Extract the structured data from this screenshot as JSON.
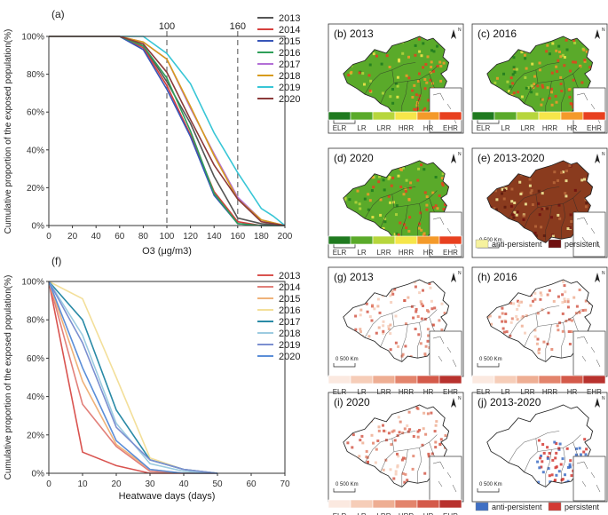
{
  "chart_data": [
    {
      "panel": "(a)",
      "type": "line",
      "xlabel": "O3 (μg/m3)",
      "ylabel": "Cumulative proportion of the exposed population(%)",
      "xlim": [
        0,
        200
      ],
      "ylim": [
        0,
        100
      ],
      "x_ticks": [
        0,
        20,
        40,
        60,
        80,
        100,
        120,
        140,
        160,
        180,
        200
      ],
      "y_ticks": [
        "0%",
        "20%",
        "40%",
        "60%",
        "80%",
        "100%"
      ],
      "threshold_lines": [
        100,
        160
      ],
      "threshold_labels": [
        "100",
        "160"
      ],
      "series": [
        {
          "name": "2013",
          "color": "#555555",
          "x": [
            0,
            60,
            80,
            100,
            120,
            140,
            160,
            180,
            200
          ],
          "y": [
            100,
            100,
            95,
            76,
            54,
            26,
            4,
            1,
            0
          ]
        },
        {
          "name": "2014",
          "color": "#d6403d",
          "x": [
            0,
            60,
            80,
            100,
            120,
            140,
            160,
            180,
            200
          ],
          "y": [
            100,
            100,
            94,
            74,
            48,
            18,
            2,
            0,
            0
          ]
        },
        {
          "name": "2015",
          "color": "#3755b8",
          "x": [
            0,
            60,
            80,
            100,
            120,
            140,
            160,
            180,
            200
          ],
          "y": [
            100,
            100,
            93,
            72,
            47,
            16,
            1,
            0,
            0
          ]
        },
        {
          "name": "2016",
          "color": "#2e9f59",
          "x": [
            0,
            60,
            80,
            100,
            120,
            140,
            160,
            180,
            200
          ],
          "y": [
            100,
            100,
            95,
            78,
            50,
            17,
            1,
            0,
            0
          ]
        },
        {
          "name": "2017",
          "color": "#b36fd6",
          "x": [
            0,
            60,
            80,
            100,
            120,
            140,
            160,
            180,
            200
          ],
          "y": [
            100,
            100,
            97,
            88,
            62,
            38,
            15,
            3,
            0
          ]
        },
        {
          "name": "2018",
          "color": "#d79b1c",
          "x": [
            0,
            60,
            80,
            100,
            120,
            140,
            160,
            180,
            200
          ],
          "y": [
            100,
            100,
            97,
            88,
            63,
            37,
            14,
            3,
            0
          ]
        },
        {
          "name": "2019",
          "color": "#38c6d6",
          "x": [
            0,
            60,
            80,
            100,
            120,
            140,
            160,
            180,
            190,
            200
          ],
          "y": [
            100,
            100,
            100,
            91,
            75,
            49,
            28,
            9,
            5,
            0
          ]
        },
        {
          "name": "2020",
          "color": "#8b3a3a",
          "x": [
            0,
            60,
            80,
            100,
            120,
            140,
            160,
            180,
            200
          ],
          "y": [
            100,
            100,
            96,
            81,
            56,
            32,
            14,
            2,
            0
          ]
        }
      ]
    },
    {
      "panel": "(f)",
      "type": "line",
      "xlabel": "Heatwave days (days)",
      "ylabel": "Cumulative proportion of the exposed population(%)",
      "xlim": [
        0,
        70
      ],
      "ylim": [
        0,
        100
      ],
      "x_ticks": [
        0,
        10,
        20,
        30,
        40,
        50,
        60,
        70
      ],
      "y_ticks": [
        "0%",
        "20%",
        "40%",
        "60%",
        "80%",
        "100%"
      ],
      "series": [
        {
          "name": "2013",
          "color": "#d9534f",
          "x": [
            0,
            10,
            20,
            30,
            40,
            50
          ],
          "y": [
            100,
            11,
            4,
            0,
            0,
            0
          ]
        },
        {
          "name": "2014",
          "color": "#e2807a",
          "x": [
            0,
            10,
            20,
            30,
            40,
            50
          ],
          "y": [
            100,
            36,
            14,
            1,
            0,
            0
          ]
        },
        {
          "name": "2015",
          "color": "#efb27a",
          "x": [
            0,
            10,
            20,
            30,
            40,
            50
          ],
          "y": [
            100,
            48,
            15,
            2,
            0,
            0
          ]
        },
        {
          "name": "2016",
          "color": "#f3df9a",
          "x": [
            0,
            10,
            20,
            30,
            40,
            50
          ],
          "y": [
            100,
            91,
            50,
            8,
            2,
            0
          ]
        },
        {
          "name": "2017",
          "color": "#2a8aa6",
          "x": [
            0,
            10,
            20,
            30,
            40,
            50
          ],
          "y": [
            100,
            80,
            33,
            7,
            2,
            0
          ]
        },
        {
          "name": "2018",
          "color": "#9ccbe0",
          "x": [
            0,
            10,
            20,
            30,
            40,
            50
          ],
          "y": [
            100,
            72,
            26,
            5,
            1,
            0
          ]
        },
        {
          "name": "2019",
          "color": "#7b8fd0",
          "x": [
            0,
            10,
            20,
            30,
            40,
            50
          ],
          "y": [
            100,
            68,
            24,
            7,
            2,
            0
          ]
        },
        {
          "name": "2020",
          "color": "#5b8ed8",
          "x": [
            0,
            10,
            20,
            30,
            40,
            50
          ],
          "y": [
            100,
            55,
            17,
            2,
            0,
            0
          ]
        }
      ]
    }
  ],
  "map_panels": [
    {
      "label": "(b) 2013",
      "kind": "o3"
    },
    {
      "label": "(c) 2016",
      "kind": "o3"
    },
    {
      "label": "(d) 2020",
      "kind": "o3"
    },
    {
      "label": "(e) 2013-2020",
      "kind": "o3_trend"
    },
    {
      "label": "(g) 2013",
      "kind": "heat"
    },
    {
      "label": "(h) 2016",
      "kind": "heat"
    },
    {
      "label": "(i) 2020",
      "kind": "heat"
    },
    {
      "label": "(j) 2013-2020",
      "kind": "heat_trend"
    }
  ],
  "scale_label": "500 Km",
  "north_symbol": "N",
  "risk_classes": [
    "ELR",
    "LR",
    "LRR",
    "HRR",
    "HR",
    "EHR"
  ],
  "o3_risk_colors": [
    "#1f7a1f",
    "#5aaa2a",
    "#b7d63c",
    "#f6e64a",
    "#f49a2a",
    "#e8401f"
  ],
  "heat_risk_colors": [
    "#fbe9e0",
    "#f6cdb8",
    "#eeae93",
    "#e3846c",
    "#d45a4a",
    "#b8322e"
  ],
  "o3_trend_legend": [
    {
      "label": "anti-persistent",
      "color": "#f6f29e"
    },
    {
      "label": "persistent",
      "color": "#6e0f0f"
    }
  ],
  "heat_trend_legend": [
    {
      "label": "anti-persistent",
      "color": "#3f6fc4"
    },
    {
      "label": "persistent",
      "color": "#d33a34"
    }
  ]
}
